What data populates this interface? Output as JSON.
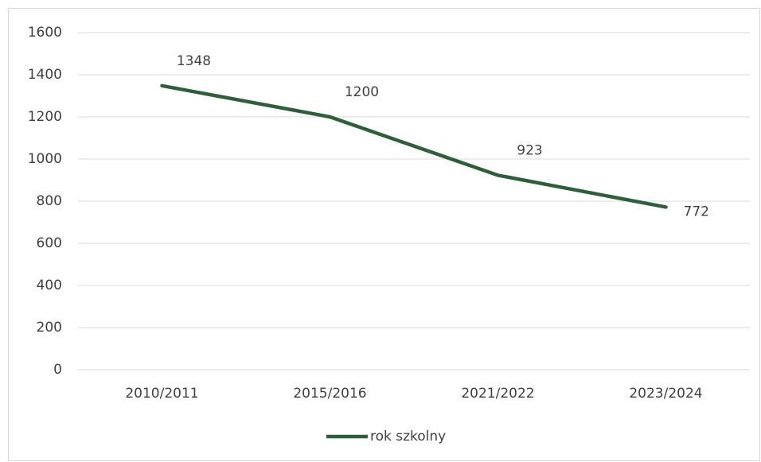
{
  "chart_data": {
    "type": "line",
    "categories": [
      "2010/2011",
      "2015/2016",
      "2021/2022",
      "2023/2024"
    ],
    "series": [
      {
        "name": "rok szkolny",
        "color": "#2f5f3a",
        "values": [
          1348,
          1200,
          923,
          772
        ]
      }
    ],
    "ylim": [
      0,
      1600
    ],
    "yticks": [
      0,
      200,
      400,
      600,
      800,
      1000,
      1200,
      1400,
      1600
    ],
    "grid": true,
    "legend": "bottom"
  }
}
